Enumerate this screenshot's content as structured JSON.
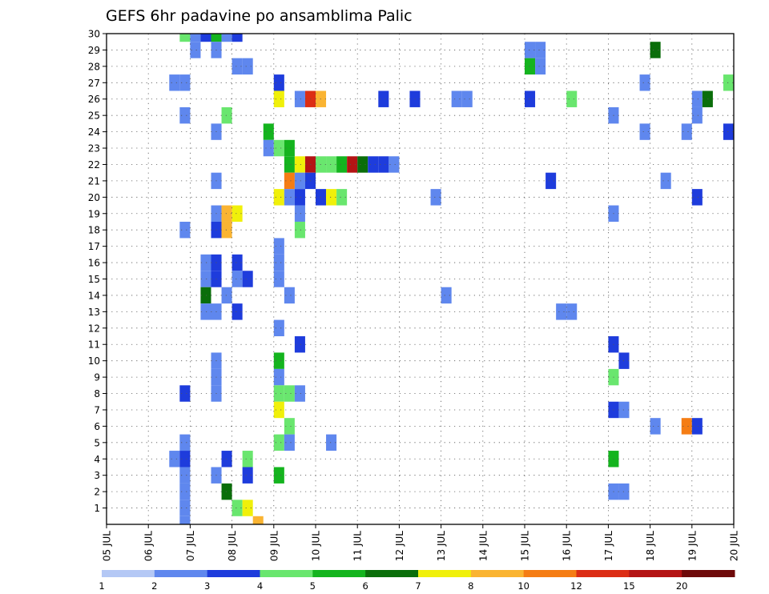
{
  "chart_data": {
    "type": "heatmap",
    "title": "GEFS 6hr padavine po ansamblima Palic",
    "xlabel": "",
    "ylabel": "",
    "x_tick_labels": [
      "05 JUL",
      "06 JUL",
      "07 JUL",
      "08 JUL",
      "09 JUL",
      "10 JUL",
      "11 JUL",
      "12 JUL",
      "13 JUL",
      "14 JUL",
      "15 JUL",
      "16 JUL",
      "17 JUL",
      "18 JUL",
      "19 JUL",
      "20 JUL"
    ],
    "x_ticks_days": [
      0,
      1,
      2,
      3,
      4,
      5,
      6,
      7,
      8,
      9,
      10,
      11,
      12,
      13,
      14,
      15
    ],
    "x_range_days": [
      0,
      15
    ],
    "step_hours": 6,
    "y_range": [
      0,
      30
    ],
    "y_ticks": [
      1,
      2,
      3,
      4,
      5,
      6,
      7,
      8,
      9,
      10,
      11,
      12,
      13,
      14,
      15,
      16,
      17,
      18,
      19,
      20,
      21,
      22,
      23,
      24,
      25,
      26,
      27,
      28,
      29,
      30
    ],
    "grid": true,
    "colorbar": {
      "boundaries": [
        1,
        2,
        3,
        4,
        5,
        6,
        7,
        8,
        10,
        12,
        15,
        20
      ],
      "labels": [
        "1",
        "2",
        "3",
        "4",
        "5",
        "6",
        "7",
        "8",
        "10",
        "12",
        "15",
        "20"
      ],
      "colors": [
        "#b4c8f5",
        "#5f87ee",
        "#1e3cdc",
        "#69e66e",
        "#14b41e",
        "#0a6e0a",
        "#f0f00a",
        "#fab432",
        "#f57d14",
        "#dc2d14",
        "#b41414",
        "#6e0a0a"
      ]
    },
    "cells": [
      [
        7,
        30,
        3
      ],
      [
        8,
        30,
        1
      ],
      [
        9,
        30,
        2
      ],
      [
        10,
        30,
        4
      ],
      [
        11,
        30,
        1
      ],
      [
        12,
        30,
        2
      ],
      [
        8,
        29,
        1
      ],
      [
        10,
        29,
        1
      ],
      [
        40,
        29,
        1
      ],
      [
        41,
        29,
        1
      ],
      [
        52,
        29,
        5
      ],
      [
        12,
        28,
        1
      ],
      [
        13,
        28,
        1
      ],
      [
        40,
        28,
        4
      ],
      [
        41,
        28,
        1
      ],
      [
        6,
        27,
        1
      ],
      [
        7,
        27,
        1
      ],
      [
        16,
        27,
        2
      ],
      [
        51,
        27,
        1
      ],
      [
        59,
        27,
        3
      ],
      [
        16,
        26,
        6
      ],
      [
        18,
        26,
        1
      ],
      [
        19,
        26,
        9
      ],
      [
        20,
        26,
        7
      ],
      [
        26,
        26,
        2
      ],
      [
        29,
        26,
        2
      ],
      [
        33,
        26,
        1
      ],
      [
        34,
        26,
        1
      ],
      [
        40,
        26,
        2
      ],
      [
        44,
        26,
        3
      ],
      [
        56,
        26,
        1
      ],
      [
        57,
        26,
        5
      ],
      [
        7,
        25,
        1
      ],
      [
        11,
        25,
        3
      ],
      [
        48,
        25,
        1
      ],
      [
        56,
        25,
        1
      ],
      [
        10,
        24,
        1
      ],
      [
        15,
        24,
        4
      ],
      [
        51,
        24,
        1
      ],
      [
        55,
        24,
        1
      ],
      [
        59,
        24,
        2
      ],
      [
        60,
        24,
        6
      ],
      [
        15,
        23,
        1
      ],
      [
        16,
        23,
        3
      ],
      [
        17,
        23,
        4
      ],
      [
        17,
        22,
        4
      ],
      [
        18,
        22,
        6
      ],
      [
        19,
        22,
        10
      ],
      [
        20,
        22,
        3
      ],
      [
        21,
        22,
        3
      ],
      [
        22,
        22,
        4
      ],
      [
        23,
        22,
        10
      ],
      [
        24,
        22,
        5
      ],
      [
        25,
        22,
        2
      ],
      [
        26,
        22,
        2
      ],
      [
        27,
        22,
        1
      ],
      [
        10,
        21,
        1
      ],
      [
        17,
        21,
        8
      ],
      [
        18,
        21,
        1
      ],
      [
        19,
        21,
        2
      ],
      [
        42,
        21,
        2
      ],
      [
        53,
        21,
        1
      ],
      [
        16,
        20,
        6
      ],
      [
        17,
        20,
        1
      ],
      [
        18,
        20,
        2
      ],
      [
        20,
        20,
        2
      ],
      [
        21,
        20,
        6
      ],
      [
        22,
        20,
        3
      ],
      [
        31,
        20,
        1
      ],
      [
        56,
        20,
        2
      ],
      [
        10,
        19,
        1
      ],
      [
        11,
        19,
        7
      ],
      [
        12,
        19,
        6
      ],
      [
        18,
        19,
        1
      ],
      [
        48,
        19,
        1
      ],
      [
        7,
        18,
        1
      ],
      [
        10,
        18,
        2
      ],
      [
        11,
        18,
        7
      ],
      [
        18,
        18,
        3
      ],
      [
        16,
        17,
        1
      ],
      [
        9,
        16,
        1
      ],
      [
        10,
        16,
        2
      ],
      [
        12,
        16,
        2
      ],
      [
        16,
        16,
        1
      ],
      [
        9,
        15,
        1
      ],
      [
        10,
        15,
        2
      ],
      [
        12,
        15,
        1
      ],
      [
        13,
        15,
        2
      ],
      [
        16,
        15,
        1
      ],
      [
        9,
        14,
        5
      ],
      [
        11,
        14,
        1
      ],
      [
        17,
        14,
        1
      ],
      [
        32,
        14,
        1
      ],
      [
        9,
        13,
        1
      ],
      [
        10,
        13,
        1
      ],
      [
        12,
        13,
        2
      ],
      [
        43,
        13,
        1
      ],
      [
        44,
        13,
        1
      ],
      [
        16,
        12,
        1
      ],
      [
        18,
        11,
        2
      ],
      [
        48,
        11,
        2
      ],
      [
        10,
        10,
        1
      ],
      [
        16,
        10,
        4
      ],
      [
        49,
        10,
        2
      ],
      [
        10,
        9,
        1
      ],
      [
        16,
        9,
        1
      ],
      [
        48,
        9,
        3
      ],
      [
        7,
        8,
        2
      ],
      [
        10,
        8,
        1
      ],
      [
        16,
        8,
        3
      ],
      [
        17,
        8,
        3
      ],
      [
        18,
        8,
        1
      ],
      [
        16,
        7,
        6
      ],
      [
        48,
        7,
        2
      ],
      [
        49,
        7,
        1
      ],
      [
        60,
        7,
        1
      ],
      [
        17,
        6,
        3
      ],
      [
        52,
        6,
        1
      ],
      [
        55,
        6,
        8
      ],
      [
        56,
        6,
        2
      ],
      [
        7,
        5,
        1
      ],
      [
        16,
        5,
        3
      ],
      [
        17,
        5,
        1
      ],
      [
        21,
        5,
        1
      ],
      [
        6,
        4,
        1
      ],
      [
        7,
        4,
        2
      ],
      [
        11,
        4,
        2
      ],
      [
        13,
        4,
        3
      ],
      [
        48,
        4,
        4
      ],
      [
        7,
        3,
        1
      ],
      [
        10,
        3,
        1
      ],
      [
        13,
        3,
        2
      ],
      [
        16,
        3,
        4
      ],
      [
        7,
        2,
        1
      ],
      [
        11,
        2,
        5
      ],
      [
        48,
        2,
        1
      ],
      [
        49,
        2,
        1
      ],
      [
        7,
        1,
        1
      ],
      [
        12,
        1,
        3
      ],
      [
        13,
        1,
        6
      ],
      [
        7,
        0,
        1
      ],
      [
        14,
        0,
        7
      ]
    ]
  }
}
